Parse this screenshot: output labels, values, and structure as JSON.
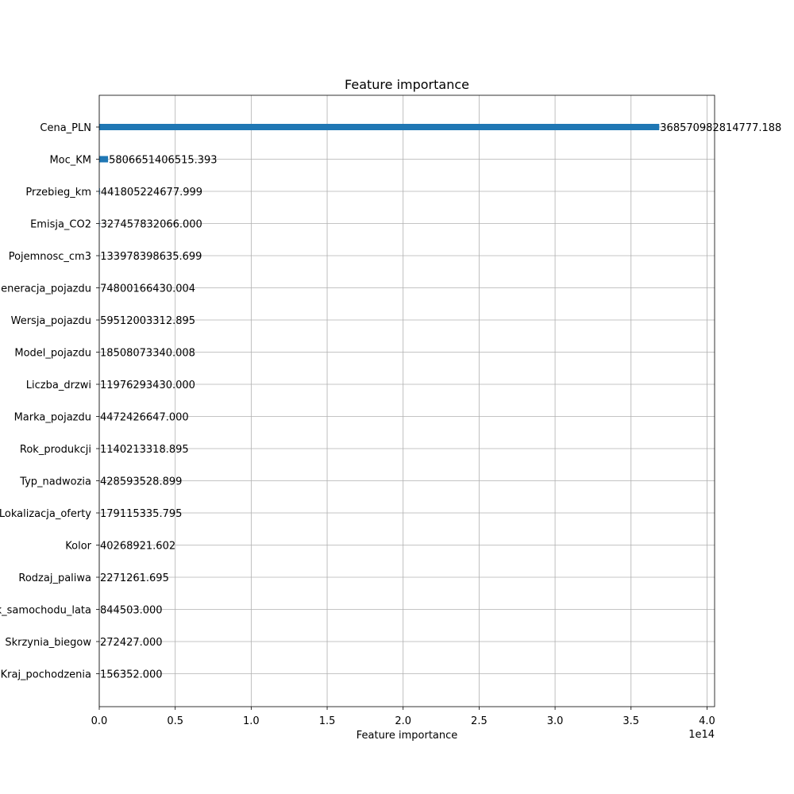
{
  "chart_data": {
    "type": "bar",
    "orientation": "horizontal",
    "title": "Feature importance",
    "xlabel": "Feature importance",
    "ylabel": "",
    "x_scale_label": "1e14",
    "xlim": [
      0,
      405000000000000.0
    ],
    "x_ticks": [
      0,
      50000000000000.0,
      100000000000000.0,
      150000000000000.0,
      200000000000000.0,
      250000000000000.0,
      300000000000000.0,
      350000000000000.0,
      400000000000000.0
    ],
    "x_tick_labels": [
      "0.0",
      "0.5",
      "1.0",
      "1.5",
      "2.0",
      "2.5",
      "3.0",
      "3.5",
      "4.0"
    ],
    "grid": true,
    "bar_color": "#1f77b4",
    "categories": [
      "Cena_PLN",
      "Moc_KM",
      "Przebieg_km",
      "Emisja_CO2",
      "Pojemnosc_cm3",
      "Generacja_pojazdu",
      "Wersja_pojazdu",
      "Model_pojazdu",
      "Liczba_drzwi",
      "Marka_pojazdu",
      "Rok_produkcji",
      "Typ_nadwozia",
      "Lokalizacja_oferty",
      "Kolor",
      "Rodzaj_paliwa",
      "Wiek_samochodu_lata",
      "Skrzynia_biegow",
      "Kraj_pochodzenia"
    ],
    "values": [
      368570982814777.2,
      5806651406515.393,
      441805224677.999,
      327457832066.0,
      133978398635.699,
      74800166430.004,
      59512003312.895,
      18508073340.008,
      11976293430.0,
      4472426647.0,
      1140213318.895,
      428593528.899,
      179115335.795,
      40268921.602,
      2271261.695,
      844503.0,
      272427.0,
      156352.0
    ],
    "value_labels": [
      "368570982814777.188",
      "5806651406515.393",
      "441805224677.999",
      "327457832066.000",
      "133978398635.699",
      "74800166430.004",
      "59512003312.895",
      "18508073340.008",
      "11976293430.000",
      "4472426647.000",
      "1140213318.895",
      "428593528.899",
      "179115335.795",
      "40268921.602",
      "2271261.695",
      "844503.000",
      "272427.000",
      "156352.000"
    ]
  }
}
